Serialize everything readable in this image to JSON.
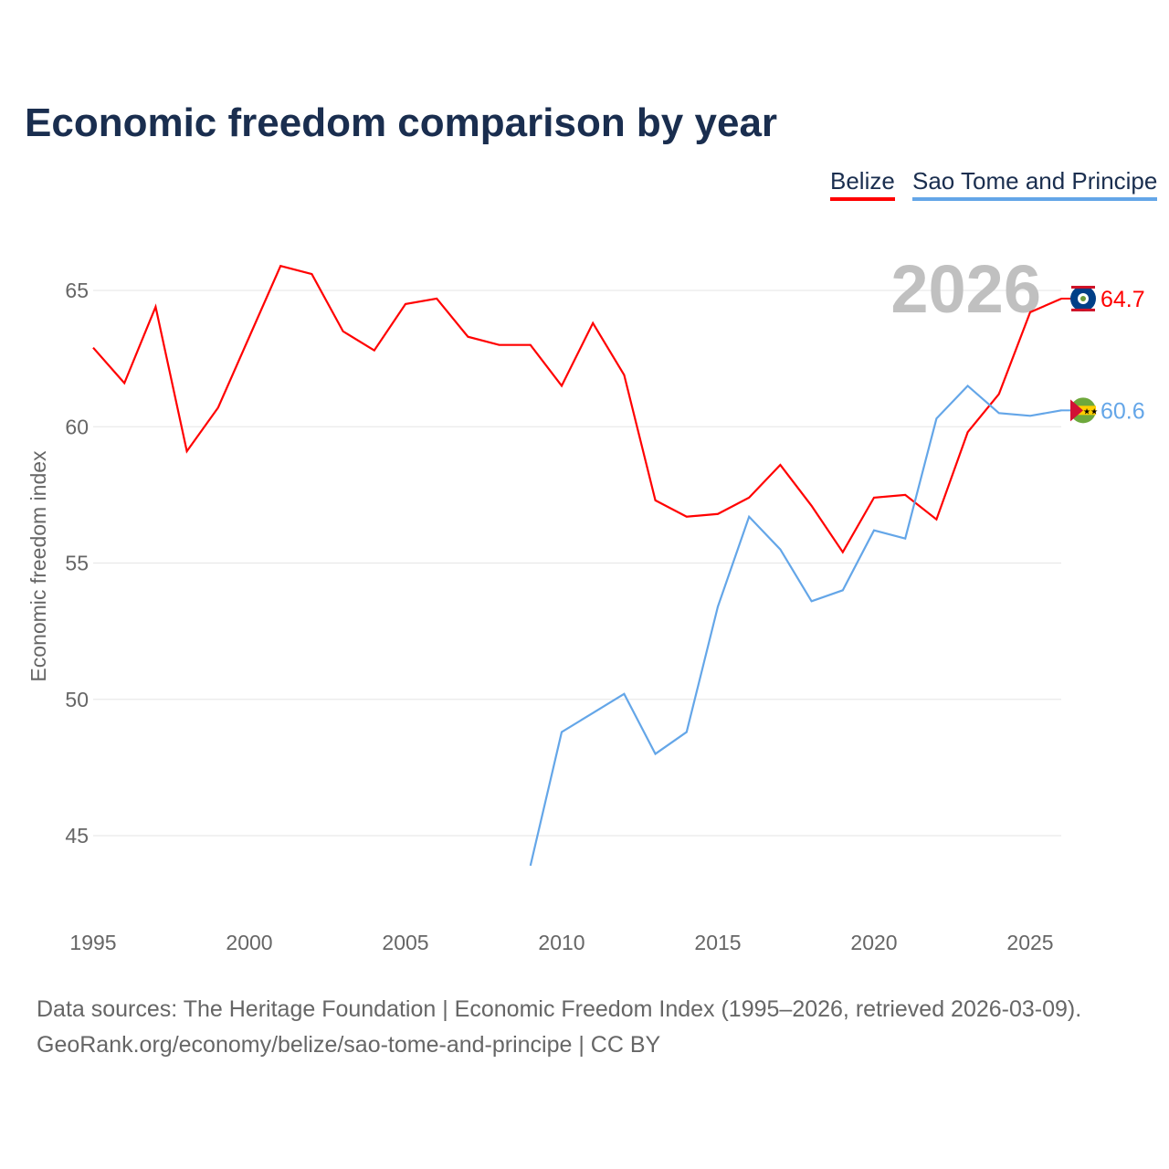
{
  "chart_data": {
    "type": "line",
    "title": "Economic freedom comparison by year",
    "xlabel": "",
    "ylabel": "Economic freedom index",
    "year_watermark": "2026",
    "xlim": [
      1995,
      2026
    ],
    "ylim": [
      43,
      67.5
    ],
    "x_ticks": [
      1995,
      2000,
      2005,
      2010,
      2015,
      2020,
      2025
    ],
    "y_ticks": [
      45,
      50,
      55,
      60,
      65
    ],
    "grid": true,
    "legend_position": "top-right",
    "series": [
      {
        "name": "Belize",
        "color": "#ff0000",
        "end_label": "64.7",
        "x": [
          1995,
          1996,
          1997,
          1998,
          1999,
          2000,
          2001,
          2002,
          2003,
          2004,
          2005,
          2006,
          2007,
          2008,
          2009,
          2010,
          2011,
          2012,
          2013,
          2014,
          2015,
          2016,
          2017,
          2018,
          2019,
          2020,
          2021,
          2022,
          2023,
          2024,
          2025,
          2026
        ],
        "values": [
          62.9,
          61.6,
          64.4,
          59.1,
          60.7,
          63.3,
          65.9,
          65.6,
          63.5,
          62.8,
          64.5,
          64.7,
          63.3,
          63.0,
          63.0,
          61.5,
          63.8,
          61.9,
          57.3,
          56.7,
          56.8,
          57.4,
          58.6,
          57.1,
          55.4,
          57.4,
          57.5,
          56.6,
          59.8,
          61.2,
          64.2,
          64.7
        ]
      },
      {
        "name": "Sao Tome and Principe",
        "color": "#64a6e8",
        "end_label": "60.6",
        "x": [
          2009,
          2010,
          2011,
          2012,
          2013,
          2014,
          2015,
          2016,
          2017,
          2018,
          2019,
          2020,
          2021,
          2022,
          2023,
          2024,
          2025,
          2026
        ],
        "values": [
          43.9,
          48.8,
          49.5,
          50.2,
          48.0,
          48.8,
          53.4,
          56.7,
          55.5,
          53.6,
          54.0,
          56.2,
          55.9,
          60.3,
          61.5,
          60.5,
          60.4,
          60.6
        ]
      }
    ]
  },
  "source_line1": "Data sources: The Heritage Foundation | Economic Freedom Index (1995–2026, retrieved 2026-03-09).",
  "source_line2": "GeoRank.org/economy/belize/sao-tome-and-principe | CC BY"
}
